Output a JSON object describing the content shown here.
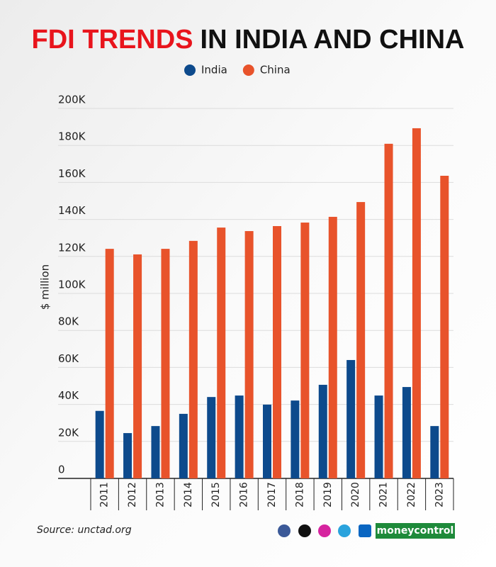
{
  "chart_data": {
    "type": "bar",
    "title_parts": [
      "FDI TRENDS",
      "IN INDIA AND CHINA"
    ],
    "title_colors": [
      "#e8141c",
      "#111111"
    ],
    "y_label": "$ million",
    "categories": [
      "2011",
      "2012",
      "2013",
      "2014",
      "2015",
      "2016",
      "2017",
      "2018",
      "2019",
      "2020",
      "2021",
      "2022",
      "2023"
    ],
    "series": [
      {
        "name": "India",
        "color": "#0d4a8c",
        "values": [
          36500,
          24500,
          28300,
          34900,
          44000,
          44800,
          39900,
          42100,
          50600,
          64000,
          44800,
          49400,
          28300
        ]
      },
      {
        "name": "China",
        "color": "#e8532b",
        "values": [
          124100,
          121100,
          124100,
          128400,
          135600,
          133700,
          136400,
          138300,
          141400,
          149400,
          180900,
          189300,
          163600
        ]
      }
    ],
    "ylim": [
      0,
      200000
    ],
    "yticks": [
      0,
      {
        "value": 20000,
        "label": "20K"
      },
      {
        "value": 40000,
        "label": "40K"
      },
      {
        "value": 60000,
        "label": "60K"
      },
      {
        "value": 80000,
        "label": "80K"
      },
      {
        "value": 100000,
        "label": "100K"
      },
      {
        "value": 120000,
        "label": "120K"
      },
      {
        "value": 140000,
        "label": "140K"
      },
      {
        "value": 160000,
        "label": "160K"
      },
      {
        "value": 180000,
        "label": "180K"
      },
      {
        "value": 200000,
        "label": "200K"
      }
    ],
    "grid": true,
    "source": "Source: unctad.org",
    "brand": "moneycontrol"
  }
}
